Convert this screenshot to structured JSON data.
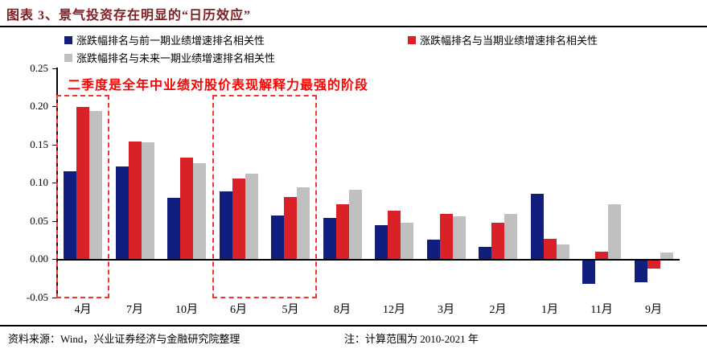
{
  "title": "图表 3、景气投资存在明显的“日历效应”",
  "legend": [
    {
      "label": "涨跌幅排名与前一期业绩增速排名相关性",
      "color": "#111e7d"
    },
    {
      "label": "涨跌幅排名与当期业绩增速排名相关性",
      "color": "#db2128"
    },
    {
      "label": "涨跌幅排名与未来一期业绩增速排名相关性",
      "color": "#bfbfbf"
    }
  ],
  "annotation": "二季度是全年中业绩对股价表现解释力最强的阶段",
  "chart_data": {
    "type": "bar",
    "title": "",
    "xlabel": "",
    "ylabel": "",
    "categories": [
      "4月",
      "7月",
      "10月",
      "6月",
      "5月",
      "8月",
      "12月",
      "3月",
      "2月",
      "1月",
      "11月",
      "9月"
    ],
    "series": [
      {
        "name": "涨跌幅排名与前一期业绩增速排名相关性",
        "color": "#111e7d",
        "values": [
          0.115,
          0.121,
          0.08,
          0.088,
          0.057,
          0.054,
          0.044,
          0.025,
          0.016,
          0.085,
          -0.03,
          -0.028
        ]
      },
      {
        "name": "涨跌幅排名与当期业绩增速排名相关性",
        "color": "#db2128",
        "values": [
          0.199,
          0.154,
          0.133,
          0.105,
          0.081,
          0.072,
          0.063,
          0.059,
          0.047,
          0.026,
          0.009,
          -0.01
        ]
      },
      {
        "name": "涨跌幅排名与未来一期业绩增速排名相关性",
        "color": "#bfbfbf",
        "values": [
          0.194,
          0.153,
          0.125,
          0.112,
          0.094,
          0.091,
          0.047,
          0.056,
          0.059,
          0.019,
          0.072,
          0.008
        ]
      }
    ],
    "ylim": [
      -0.05,
      0.25
    ],
    "yticks": [
      0.25,
      0.2,
      0.15,
      0.1,
      0.05,
      0.0,
      -0.05
    ],
    "grid": false,
    "legend_position": "top-left",
    "highlight_boxes": [
      {
        "categories": [
          "4月"
        ],
        "color": "#f5352b"
      },
      {
        "categories": [
          "6月",
          "5月"
        ],
        "color": "#f5352b"
      }
    ]
  },
  "footer": {
    "source": "资料来源：Wind，兴业证券经济与金融研究院整理",
    "note": "注：计算范围为 2010-2021 年"
  }
}
